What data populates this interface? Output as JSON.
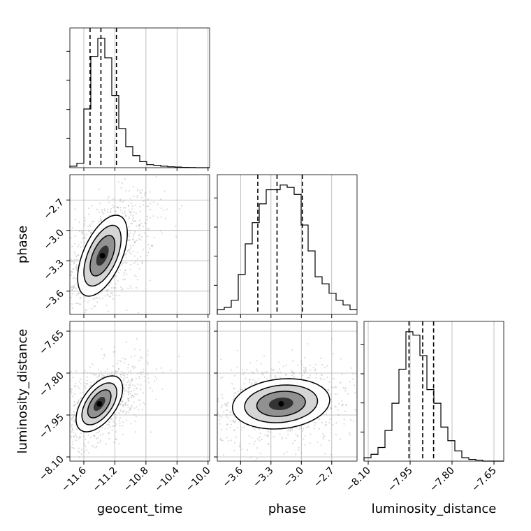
{
  "chart_data": {
    "type": "corner",
    "parameters": [
      "geocent_time",
      "phase",
      "luminosity_distance"
    ],
    "axis_labels": {
      "x": [
        "geocent_time",
        "phase",
        "luminosity_distance"
      ],
      "y": [
        "",
        "phase",
        "luminosity_distance"
      ]
    },
    "ranges": {
      "geocent_time": [
        -11.78,
        -9.98
      ],
      "phase": [
        -3.83,
        -2.45
      ],
      "luminosity_distance": [
        -8.115,
        -7.615
      ]
    },
    "ticks": {
      "geocent_time": [
        -11.6,
        -11.2,
        -10.8,
        -10.4,
        -10.0
      ],
      "phase": [
        -3.6,
        -3.3,
        -3.0,
        -2.7
      ],
      "luminosity_distance": [
        -8.1,
        -7.95,
        -7.8,
        -7.65
      ]
    },
    "tick_labels": {
      "geocent_time": [
        "−11.6",
        "−11.2",
        "−10.8",
        "−10.4",
        "−10.0"
      ],
      "phase": [
        "−3.6",
        "−3.3",
        "−3.0",
        "−2.7"
      ],
      "luminosity_distance": [
        "−8.10",
        "−7.95",
        "−7.80",
        "−7.65"
      ]
    },
    "quantiles": {
      "geocent_time": [
        -11.52,
        -11.38,
        -11.18
      ],
      "phase": [
        -3.43,
        -3.24,
        -2.99
      ],
      "luminosity_distance": [
        -7.954,
        -7.905,
        -7.866
      ]
    },
    "histograms": {
      "geocent_time": {
        "edges": [
          -11.78,
          -11.69,
          -11.6,
          -11.51,
          -11.42,
          -11.33,
          -11.24,
          -11.15,
          -11.06,
          -10.97,
          -10.88,
          -10.79,
          -10.7,
          -10.61,
          -10.52,
          -10.43,
          -10.34,
          -10.25,
          -10.16,
          -10.07,
          -9.98
        ],
        "counts": [
          0.5,
          1.5,
          19.5,
          37,
          43,
          36.5,
          24,
          13,
          7,
          4,
          2,
          1,
          0.8,
          0.5,
          0.3,
          0.2,
          0.1,
          0.05,
          0,
          0
        ]
      },
      "phase": {
        "edges": [
          -3.83,
          -3.761,
          -3.692,
          -3.623,
          -3.554,
          -3.485,
          -3.416,
          -3.347,
          -3.278,
          -3.209,
          -3.14,
          -3.071,
          -3.002,
          -2.933,
          -2.864,
          -2.795,
          -2.726,
          -2.657,
          -2.588,
          -2.519,
          -2.45
        ],
        "counts": [
          1,
          1.5,
          3,
          8.5,
          15,
          19.5,
          23.5,
          26.5,
          26.5,
          27.5,
          27,
          25.5,
          19,
          13.5,
          8,
          6.5,
          4.5,
          3,
          2,
          1
        ]
      },
      "luminosity_distance": {
        "edges": [
          -8.115,
          -8.09,
          -8.065,
          -8.04,
          -8.015,
          -7.99,
          -7.965,
          -7.94,
          -7.915,
          -7.89,
          -7.865,
          -7.84,
          -7.815,
          -7.79,
          -7.765,
          -7.74,
          -7.715,
          -7.69,
          -7.665,
          -7.64,
          -7.615
        ],
        "counts": [
          1,
          2,
          4,
          9,
          17,
          27,
          38,
          37,
          31,
          21,
          17,
          10,
          6,
          3,
          1,
          0.5,
          0.3,
          0,
          0,
          0
        ]
      }
    },
    "joint": [
      {
        "x": "geocent_time",
        "y": "phase",
        "center": [
          -11.36,
          -3.25
        ],
        "sigma": [
          0.16,
          0.2
        ],
        "rho": 0.55,
        "scatter_sigma": [
          0.34,
          0.32
        ]
      },
      {
        "x": "geocent_time",
        "y": "luminosity_distance",
        "center": [
          -11.4,
          -7.91
        ],
        "sigma": [
          0.15,
          0.05
        ],
        "rho": 0.55,
        "scatter_sigma": [
          0.32,
          0.08
        ]
      },
      {
        "x": "phase",
        "y": "luminosity_distance",
        "center": [
          -3.2,
          -7.91
        ],
        "sigma": [
          0.24,
          0.045
        ],
        "rho": 0.15,
        "scatter_sigma": [
          0.38,
          0.075
        ]
      }
    ],
    "contour_levels_sigma": [
      0.5,
      1.0,
      1.5,
      2.0
    ],
    "grid": true,
    "colors": {
      "line": "#000000",
      "grid": "#b0b0b0",
      "scatter": "#9a9a9a"
    }
  }
}
